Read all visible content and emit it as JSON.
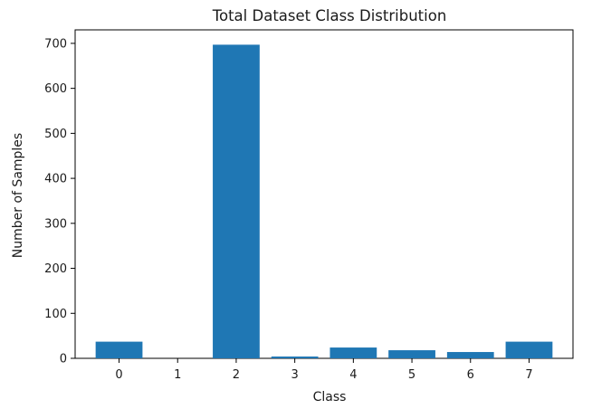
{
  "chart_data": {
    "type": "bar",
    "title": "Total Dataset Class Distribution",
    "xlabel": "Class",
    "ylabel": "Number of Samples",
    "categories": [
      "0",
      "1",
      "2",
      "3",
      "4",
      "5",
      "6",
      "7"
    ],
    "values": [
      37,
      0,
      697,
      4,
      24,
      18,
      14,
      37
    ],
    "ylim": [
      0,
      730
    ],
    "yticks": [
      0,
      100,
      200,
      300,
      400,
      500,
      600,
      700
    ],
    "grid": false,
    "bar_color": "#1f77b4"
  }
}
